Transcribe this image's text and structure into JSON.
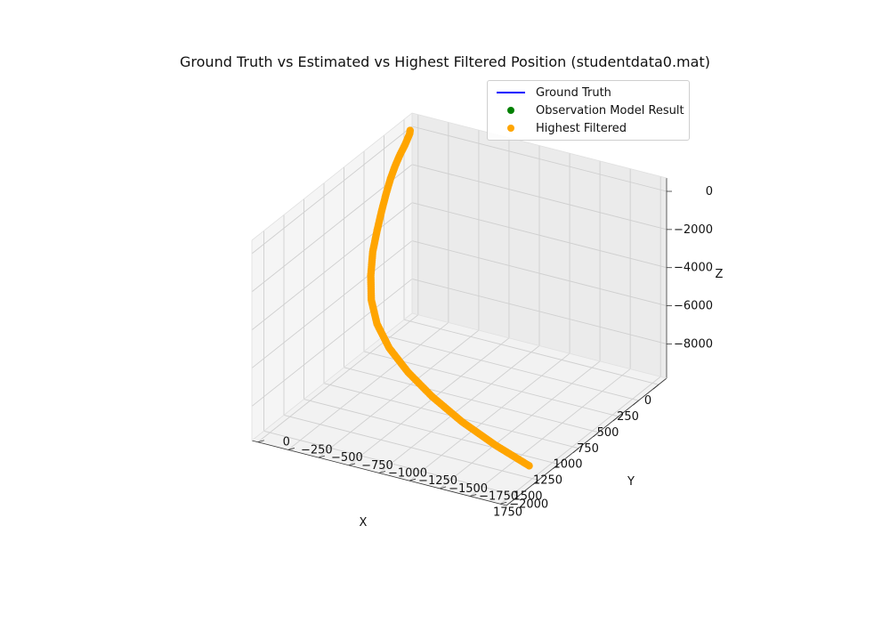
{
  "chart_data": {
    "type": "scatter",
    "projection": "3d",
    "title": "Ground Truth vs Estimated vs Highest Filtered Position (studentdata0.mat)",
    "xlabel": "X",
    "ylabel": "Y",
    "zlabel": "Z",
    "x_ticks": [
      "0",
      "250",
      "500",
      "750",
      "1000",
      "1250",
      "1500",
      "1750"
    ],
    "y_ticks": [
      "0",
      "−250",
      "−500",
      "−750",
      "−1000",
      "−1250",
      "−1500",
      "−1750",
      "−2000"
    ],
    "z_ticks": [
      "0",
      "−2000",
      "−4000",
      "−6000",
      "−8000"
    ],
    "xlim": [
      -100,
      1900
    ],
    "ylim": [
      -2050,
      50
    ],
    "zlim": [
      -9800,
      700
    ],
    "grid": true,
    "legend_position": "upper right",
    "legend": [
      {
        "label": "Ground Truth",
        "type": "line",
        "color": "#0000ff"
      },
      {
        "label": "Observation Model Result",
        "type": "scatter",
        "color": "#008000"
      },
      {
        "label": "Highest Filtered",
        "type": "scatter",
        "color": "#ffa500"
      }
    ],
    "series": [
      {
        "name": "Highest Filtered",
        "color": "#ffa500",
        "x": [
          0,
          20,
          60,
          120,
          200,
          290,
          380,
          480,
          580,
          700,
          830,
          960,
          1090,
          1200,
          1290,
          1360,
          1420,
          1470,
          1510,
          1540
        ],
        "y": [
          0,
          -10,
          -20,
          -35,
          -50,
          -70,
          -90,
          -120,
          -150,
          -190,
          -240,
          -310,
          -400,
          -520,
          -680,
          -880,
          -1120,
          -1400,
          -1700,
          -2000
        ],
        "z": [
          200,
          120,
          20,
          -120,
          -300,
          -550,
          -900,
          -1300,
          -1800,
          -2400,
          -3000,
          -3700,
          -4400,
          -5100,
          -5800,
          -6500,
          -7200,
          -7900,
          -8500,
          -9000
        ]
      }
    ]
  }
}
